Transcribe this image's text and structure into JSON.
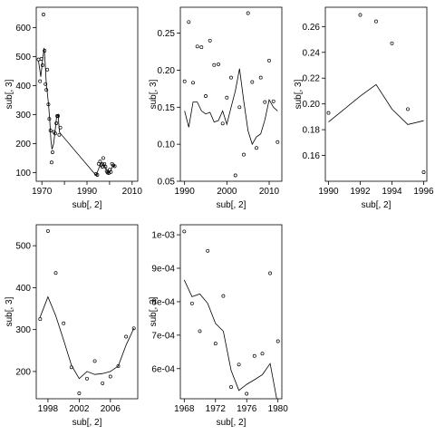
{
  "chart_data": [
    {
      "type": "scatter",
      "xlabel": "sub[, 2]",
      "ylabel": "sub[, 3]",
      "xlim": [
        1967.5,
        2012.5
      ],
      "ylim": [
        70,
        670
      ],
      "xticks": [
        1970,
        1980,
        1990,
        2000,
        2010
      ],
      "xtick_labels": [
        "1970",
        "",
        "1990",
        "",
        "2010"
      ],
      "yticks": [
        100,
        200,
        300,
        400,
        500,
        600
      ],
      "ytick_labels": [
        "100",
        "200",
        "300",
        "400",
        "500",
        "600"
      ],
      "points": [
        [
          1968.5,
          490
        ],
        [
          1969.2,
          415
        ],
        [
          1969.8,
          492
        ],
        [
          1970.3,
          470
        ],
        [
          1970.7,
          645
        ],
        [
          1971.2,
          520
        ],
        [
          1971.6,
          405
        ],
        [
          1972.0,
          385
        ],
        [
          1972.4,
          455
        ],
        [
          1972.9,
          335
        ],
        [
          1973.3,
          285
        ],
        [
          1973.8,
          245
        ],
        [
          1974.3,
          135
        ],
        [
          1974.7,
          170
        ],
        [
          1975.3,
          240
        ],
        [
          1975.9,
          235
        ],
        [
          1976.4,
          270
        ],
        [
          1976.8,
          295
        ],
        [
          1977.2,
          295
        ],
        [
          1977.7,
          230
        ],
        [
          1978.2,
          255
        ],
        [
          1994.0,
          95
        ],
        [
          1994.6,
          92
        ],
        [
          1995.2,
          130
        ],
        [
          1995.8,
          138
        ],
        [
          1996.3,
          125
        ],
        [
          1996.8,
          120
        ],
        [
          1997.2,
          150
        ],
        [
          1997.7,
          130
        ],
        [
          1998.2,
          120
        ],
        [
          1998.7,
          105
        ],
        [
          1999.1,
          100
        ],
        [
          1999.6,
          98
        ],
        [
          2000.1,
          110
        ],
        [
          2000.6,
          102
        ],
        [
          2001.1,
          130
        ],
        [
          2001.7,
          125
        ],
        [
          2002.3,
          122
        ]
      ],
      "line": [
        [
          1968.5,
          485
        ],
        [
          1969.5,
          430
        ],
        [
          1970.2,
          480
        ],
        [
          1971.0,
          530
        ],
        [
          1971.5,
          470
        ],
        [
          1972.0,
          400
        ],
        [
          1972.5,
          370
        ],
        [
          1973.0,
          330
        ],
        [
          1973.5,
          280
        ],
        [
          1974.0,
          210
        ],
        [
          1974.5,
          180
        ],
        [
          1975.2,
          200
        ],
        [
          1975.8,
          240
        ],
        [
          1976.5,
          290
        ],
        [
          1977.2,
          300
        ],
        [
          1977.8,
          240
        ],
        [
          1978.2,
          235
        ],
        [
          1994.0,
          90
        ],
        [
          1995.5,
          120
        ],
        [
          1996.5,
          135
        ],
        [
          1997.5,
          130
        ],
        [
          1998.5,
          110
        ],
        [
          1999.5,
          98
        ],
        [
          2000.5,
          105
        ],
        [
          2001.2,
          120
        ],
        [
          2002.3,
          125
        ]
      ]
    },
    {
      "type": "scatter",
      "xlabel": "sub[, 2]",
      "ylabel": "sub[, 3]",
      "xlim": [
        1989,
        2013
      ],
      "ylim": [
        0.05,
        0.285
      ],
      "xticks": [
        1990,
        2000,
        2010
      ],
      "xtick_labels": [
        "1990",
        "2000",
        "2010"
      ],
      "yticks": [
        0.05,
        0.1,
        0.15,
        0.2,
        0.25
      ],
      "ytick_labels": [
        "0.05",
        "0.10",
        "0.15",
        "0.20",
        "0.25"
      ],
      "points": [
        [
          1990.0,
          0.185
        ],
        [
          1991.0,
          0.265
        ],
        [
          1992.0,
          0.183
        ],
        [
          1993.0,
          0.232
        ],
        [
          1994.0,
          0.231
        ],
        [
          1995.0,
          0.165
        ],
        [
          1996.0,
          0.24
        ],
        [
          1997.0,
          0.207
        ],
        [
          1998.0,
          0.208
        ],
        [
          1999.0,
          0.128
        ],
        [
          2000.0,
          0.163
        ],
        [
          2001.0,
          0.19
        ],
        [
          2002.0,
          0.058
        ],
        [
          2003.0,
          0.15
        ],
        [
          2004.0,
          0.086
        ],
        [
          2005.0,
          0.277
        ],
        [
          2006.0,
          0.184
        ],
        [
          2007.0,
          0.095
        ],
        [
          2008.0,
          0.19
        ],
        [
          2009.0,
          0.157
        ],
        [
          2010.0,
          0.213
        ],
        [
          2011.0,
          0.158
        ],
        [
          2012.0,
          0.103
        ]
      ],
      "line": [
        [
          1990.0,
          0.145
        ],
        [
          1991.0,
          0.123
        ],
        [
          1992.0,
          0.157
        ],
        [
          1993.0,
          0.157
        ],
        [
          1994.0,
          0.145
        ],
        [
          1995.0,
          0.141
        ],
        [
          1996.0,
          0.143
        ],
        [
          1997.0,
          0.13
        ],
        [
          1998.0,
          0.132
        ],
        [
          1999.0,
          0.145
        ],
        [
          2000.0,
          0.127
        ],
        [
          2001.0,
          0.15
        ],
        [
          2002.0,
          0.172
        ],
        [
          2003.0,
          0.202
        ],
        [
          2004.0,
          0.158
        ],
        [
          2005.0,
          0.118
        ],
        [
          2006.0,
          0.1
        ],
        [
          2007.0,
          0.11
        ],
        [
          2008.0,
          0.114
        ],
        [
          2009.0,
          0.133
        ],
        [
          2010.0,
          0.16
        ],
        [
          2011.0,
          0.15
        ],
        [
          2012.0,
          0.145
        ]
      ]
    },
    {
      "type": "scatter",
      "xlabel": "sub[, 2]",
      "ylabel": "sub[, 3]",
      "xlim": [
        1989.8,
        1996.2
      ],
      "ylim": [
        0.14,
        0.275
      ],
      "xticks": [
        1990,
        1992,
        1994,
        1996
      ],
      "xtick_labels": [
        "1990",
        "1992",
        "1994",
        "1996"
      ],
      "yticks": [
        0.16,
        0.18,
        0.2,
        0.22,
        0.24,
        0.26
      ],
      "ytick_labels": [
        "0.16",
        "0.18",
        "0.20",
        "0.22",
        "0.24",
        "0.26"
      ],
      "points": [
        [
          1990.0,
          0.193
        ],
        [
          1992.0,
          0.269
        ],
        [
          1993.0,
          0.264
        ],
        [
          1994.0,
          0.247
        ],
        [
          1995.0,
          0.196
        ],
        [
          1996.0,
          0.147
        ]
      ],
      "line": [
        [
          1990.0,
          0.186
        ],
        [
          1992.0,
          0.206
        ],
        [
          1993.0,
          0.215
        ],
        [
          1994.0,
          0.196
        ],
        [
          1995.0,
          0.184
        ],
        [
          1996.0,
          0.187
        ]
      ]
    },
    {
      "type": "scatter",
      "xlabel": "sub[, 2]",
      "ylabel": "sub[, 3]",
      "xlim": [
        1996.5,
        2009.5
      ],
      "ylim": [
        135,
        550
      ],
      "xticks": [
        1998,
        2002,
        2006
      ],
      "xtick_labels": [
        "1998",
        "2002",
        "2006"
      ],
      "yticks": [
        200,
        300,
        400,
        500
      ],
      "ytick_labels": [
        "200",
        "300",
        "400",
        "500"
      ],
      "points": [
        [
          1997.0,
          325
        ],
        [
          1998.0,
          535
        ],
        [
          1999.0,
          435
        ],
        [
          2000.0,
          315
        ],
        [
          2001.0,
          210
        ],
        [
          2002.0,
          148
        ],
        [
          2003.0,
          183
        ],
        [
          2004.0,
          225
        ],
        [
          2005.0,
          172
        ],
        [
          2006.0,
          188
        ],
        [
          2007.0,
          213
        ],
        [
          2008.0,
          283
        ],
        [
          2009.0,
          303
        ]
      ],
      "line": [
        [
          1997.0,
          330
        ],
        [
          1998.0,
          378
        ],
        [
          1999.0,
          333
        ],
        [
          2000.0,
          275
        ],
        [
          2001.0,
          215
        ],
        [
          2002.0,
          183
        ],
        [
          2003.0,
          200
        ],
        [
          2004.0,
          193
        ],
        [
          2005.0,
          195
        ],
        [
          2006.0,
          200
        ],
        [
          2007.0,
          213
        ],
        [
          2008.0,
          263
        ],
        [
          2009.0,
          303
        ]
      ]
    },
    {
      "type": "scatter",
      "xlabel": "sub[, 2]",
      "ylabel": "sub[, 3]",
      "xlim": [
        1967.5,
        1980.5
      ],
      "ylim": [
        0.00051,
        0.00103
      ],
      "xticks": [
        1968,
        1972,
        1976,
        1980
      ],
      "xtick_labels": [
        "1968",
        "1972",
        "1976",
        "1980"
      ],
      "yticks": [
        0.0006,
        0.0007,
        0.0008,
        0.0009,
        0.001
      ],
      "ytick_labels": [
        "6e-04",
        "7e-04",
        "8e-04",
        "9e-04",
        "1e-03"
      ],
      "points": [
        [
          1968.0,
          0.00101
        ],
        [
          1969.0,
          0.000795
        ],
        [
          1970.0,
          0.000712
        ],
        [
          1971.0,
          0.000952
        ],
        [
          1972.0,
          0.000675
        ],
        [
          1973.0,
          0.000817
        ],
        [
          1974.0,
          0.000545
        ],
        [
          1975.0,
          0.000612
        ],
        [
          1976.0,
          0.000525
        ],
        [
          1977.0,
          0.000638
        ],
        [
          1978.0,
          0.000645
        ],
        [
          1979.0,
          0.000885
        ],
        [
          1980.0,
          0.000682
        ]
      ],
      "line": [
        [
          1968.0,
          0.000865
        ],
        [
          1969.0,
          0.000815
        ],
        [
          1970.0,
          0.000823
        ],
        [
          1971.0,
          0.000795
        ],
        [
          1972.0,
          0.000735
        ],
        [
          1973.0,
          0.000712
        ],
        [
          1974.0,
          0.000595
        ],
        [
          1975.0,
          0.000535
        ],
        [
          1976.0,
          0.000553
        ],
        [
          1977.0,
          0.000567
        ],
        [
          1978.0,
          0.000582
        ],
        [
          1979.0,
          0.000615
        ],
        [
          1980.0,
          0.00049
        ]
      ]
    }
  ]
}
